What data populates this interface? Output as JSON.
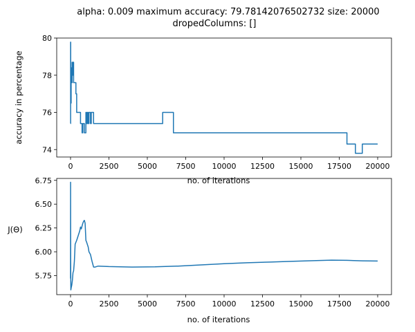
{
  "figure": {
    "title_line1": "alpha: 0.009 maximum accuracy: 79.78142076502732 size: 20000",
    "title_line2": "dropedColumns: []"
  },
  "chart_data": [
    {
      "type": "line",
      "xlabel": "no. of iterations",
      "ylabel": "accuracy in percentage",
      "xlim": [
        -900,
        20900
      ],
      "ylim": [
        73.6,
        80.0
      ],
      "xticks": [
        0,
        2500,
        5000,
        7500,
        10000,
        12500,
        15000,
        17500,
        20000
      ],
      "yticks": [
        74,
        76,
        78,
        80
      ],
      "line_color": "#1f77b4",
      "step": true,
      "x": [
        0,
        5,
        10,
        20,
        40,
        60,
        80,
        100,
        130,
        160,
        200,
        250,
        300,
        350,
        400,
        500,
        650,
        750,
        800,
        900,
        1000,
        1050,
        1100,
        1150,
        1200,
        1300,
        1350,
        1450,
        1500,
        5950,
        6000,
        6650,
        6700,
        17950,
        18000,
        18500,
        18550,
        18950,
        19000,
        20000
      ],
      "y": [
        75.4,
        79.78,
        78.1,
        76.5,
        77.6,
        78.4,
        77.6,
        78.7,
        78.0,
        78.7,
        77.6,
        77.6,
        77.6,
        77.0,
        76.0,
        76.0,
        75.4,
        74.9,
        75.4,
        74.9,
        76.0,
        75.4,
        76.0,
        75.4,
        76.0,
        75.4,
        76.0,
        76.0,
        75.4,
        75.4,
        76.0,
        76.0,
        74.9,
        74.9,
        74.3,
        74.3,
        73.8,
        73.8,
        74.3,
        74.3
      ]
    },
    {
      "type": "line",
      "xlabel": "no. of iterations",
      "ylabel": "J(Θ)",
      "xlim": [
        -900,
        20900
      ],
      "ylim": [
        5.55,
        6.77
      ],
      "xticks": [
        0,
        2500,
        5000,
        7500,
        10000,
        12500,
        15000,
        17500,
        20000
      ],
      "yticks": [
        5.75,
        6.0,
        6.25,
        6.5,
        6.75
      ],
      "line_color": "#1f77b4",
      "step": false,
      "x": [
        0,
        3,
        6,
        10,
        20,
        40,
        80,
        120,
        160,
        200,
        250,
        300,
        400,
        500,
        600,
        650,
        700,
        750,
        800,
        850,
        900,
        950,
        1000,
        1050,
        1150,
        1200,
        1300,
        1400,
        1500,
        1600,
        1800,
        2500,
        4000,
        5500,
        7000,
        8500,
        10000,
        11500,
        13000,
        14500,
        16000,
        17000,
        18000,
        19000,
        20000
      ],
      "y": [
        5.72,
        6.73,
        6.3,
        5.9,
        5.6,
        5.62,
        5.65,
        5.7,
        5.78,
        5.8,
        5.9,
        6.08,
        6.12,
        6.17,
        6.22,
        6.26,
        6.24,
        6.27,
        6.3,
        6.32,
        6.33,
        6.3,
        6.12,
        6.1,
        6.05,
        6.0,
        5.97,
        5.9,
        5.84,
        5.84,
        5.85,
        5.845,
        5.84,
        5.842,
        5.85,
        5.862,
        5.875,
        5.885,
        5.892,
        5.9,
        5.908,
        5.912,
        5.91,
        5.905,
        5.903
      ]
    }
  ]
}
